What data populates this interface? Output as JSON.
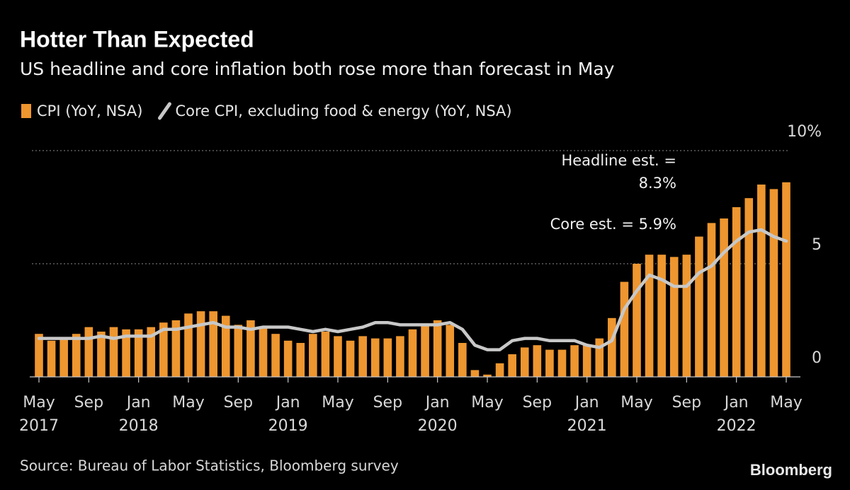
{
  "chart_data": {
    "type": "bar_line",
    "title": "Hotter Than Expected",
    "subtitle": "US headline and core inflation both rose more than forecast in May",
    "categories": [
      "May",
      null,
      null,
      null,
      "Sep",
      null,
      null,
      null,
      "Jan",
      null,
      null,
      null,
      "May",
      null,
      null,
      null,
      "Sep",
      null,
      null,
      null,
      "Jan",
      null,
      null,
      null,
      "May",
      null,
      null,
      null,
      "Sep",
      null,
      null,
      null,
      "Jan",
      null,
      null,
      null,
      "May",
      null,
      null,
      null,
      "Sep",
      null,
      null,
      null,
      "Jan",
      null,
      null,
      null,
      "May",
      null,
      null,
      null,
      "Sep",
      null,
      null,
      null,
      "Jan",
      null,
      null,
      null,
      "May"
    ],
    "x_year_labels": [
      "2017",
      null,
      null,
      null,
      null,
      null,
      null,
      null,
      "2018",
      null,
      null,
      null,
      null,
      null,
      null,
      null,
      null,
      null,
      null,
      null,
      "2019",
      null,
      null,
      null,
      null,
      null,
      null,
      null,
      null,
      null,
      null,
      null,
      "2020",
      null,
      null,
      null,
      null,
      null,
      null,
      null,
      null,
      null,
      null,
      null,
      "2021",
      null,
      null,
      null,
      null,
      null,
      null,
      null,
      null,
      null,
      null,
      null,
      "2022",
      null,
      null,
      null,
      null
    ],
    "series": [
      {
        "name": "CPI (YoY, NSA)",
        "type": "bar",
        "color": "#ee962f",
        "values": [
          1.9,
          1.6,
          1.7,
          1.9,
          2.2,
          2.0,
          2.2,
          2.1,
          2.1,
          2.2,
          2.4,
          2.5,
          2.8,
          2.9,
          2.9,
          2.7,
          2.3,
          2.5,
          2.2,
          1.9,
          1.6,
          1.5,
          1.9,
          2.0,
          1.8,
          1.6,
          1.8,
          1.7,
          1.7,
          1.8,
          2.1,
          2.3,
          2.5,
          2.3,
          1.5,
          0.3,
          0.1,
          0.6,
          1.0,
          1.3,
          1.4,
          1.2,
          1.2,
          1.4,
          1.4,
          1.7,
          2.6,
          4.2,
          5.0,
          5.4,
          5.4,
          5.3,
          5.4,
          6.2,
          6.8,
          7.0,
          7.5,
          7.9,
          8.5,
          8.3,
          8.6
        ]
      },
      {
        "name": "Core CPI, excluding food & energy (YoY, NSA)",
        "type": "line",
        "color": "#c8c8c8",
        "values": [
          1.7,
          1.7,
          1.7,
          1.7,
          1.7,
          1.8,
          1.7,
          1.8,
          1.8,
          1.8,
          2.1,
          2.1,
          2.2,
          2.3,
          2.4,
          2.2,
          2.2,
          2.1,
          2.2,
          2.2,
          2.2,
          2.1,
          2.0,
          2.1,
          2.0,
          2.1,
          2.2,
          2.4,
          2.4,
          2.3,
          2.3,
          2.3,
          2.3,
          2.4,
          2.1,
          1.4,
          1.2,
          1.2,
          1.6,
          1.7,
          1.7,
          1.6,
          1.6,
          1.6,
          1.4,
          1.3,
          1.6,
          3.0,
          3.8,
          4.5,
          4.3,
          4.0,
          4.0,
          4.6,
          4.9,
          5.5,
          6.0,
          6.4,
          6.5,
          6.2,
          6.0
        ]
      }
    ],
    "ylim": [
      0,
      10
    ],
    "yticks": [
      0,
      5,
      {
        "value": 10,
        "label": "10%"
      }
    ],
    "grid": true,
    "annotations": [
      "Headline est. =",
      "8.3%",
      "Core est. = 5.9%"
    ],
    "source": "Source: Bureau of Labor Statistics, Bloomberg survey",
    "brand": "Bloomberg"
  }
}
